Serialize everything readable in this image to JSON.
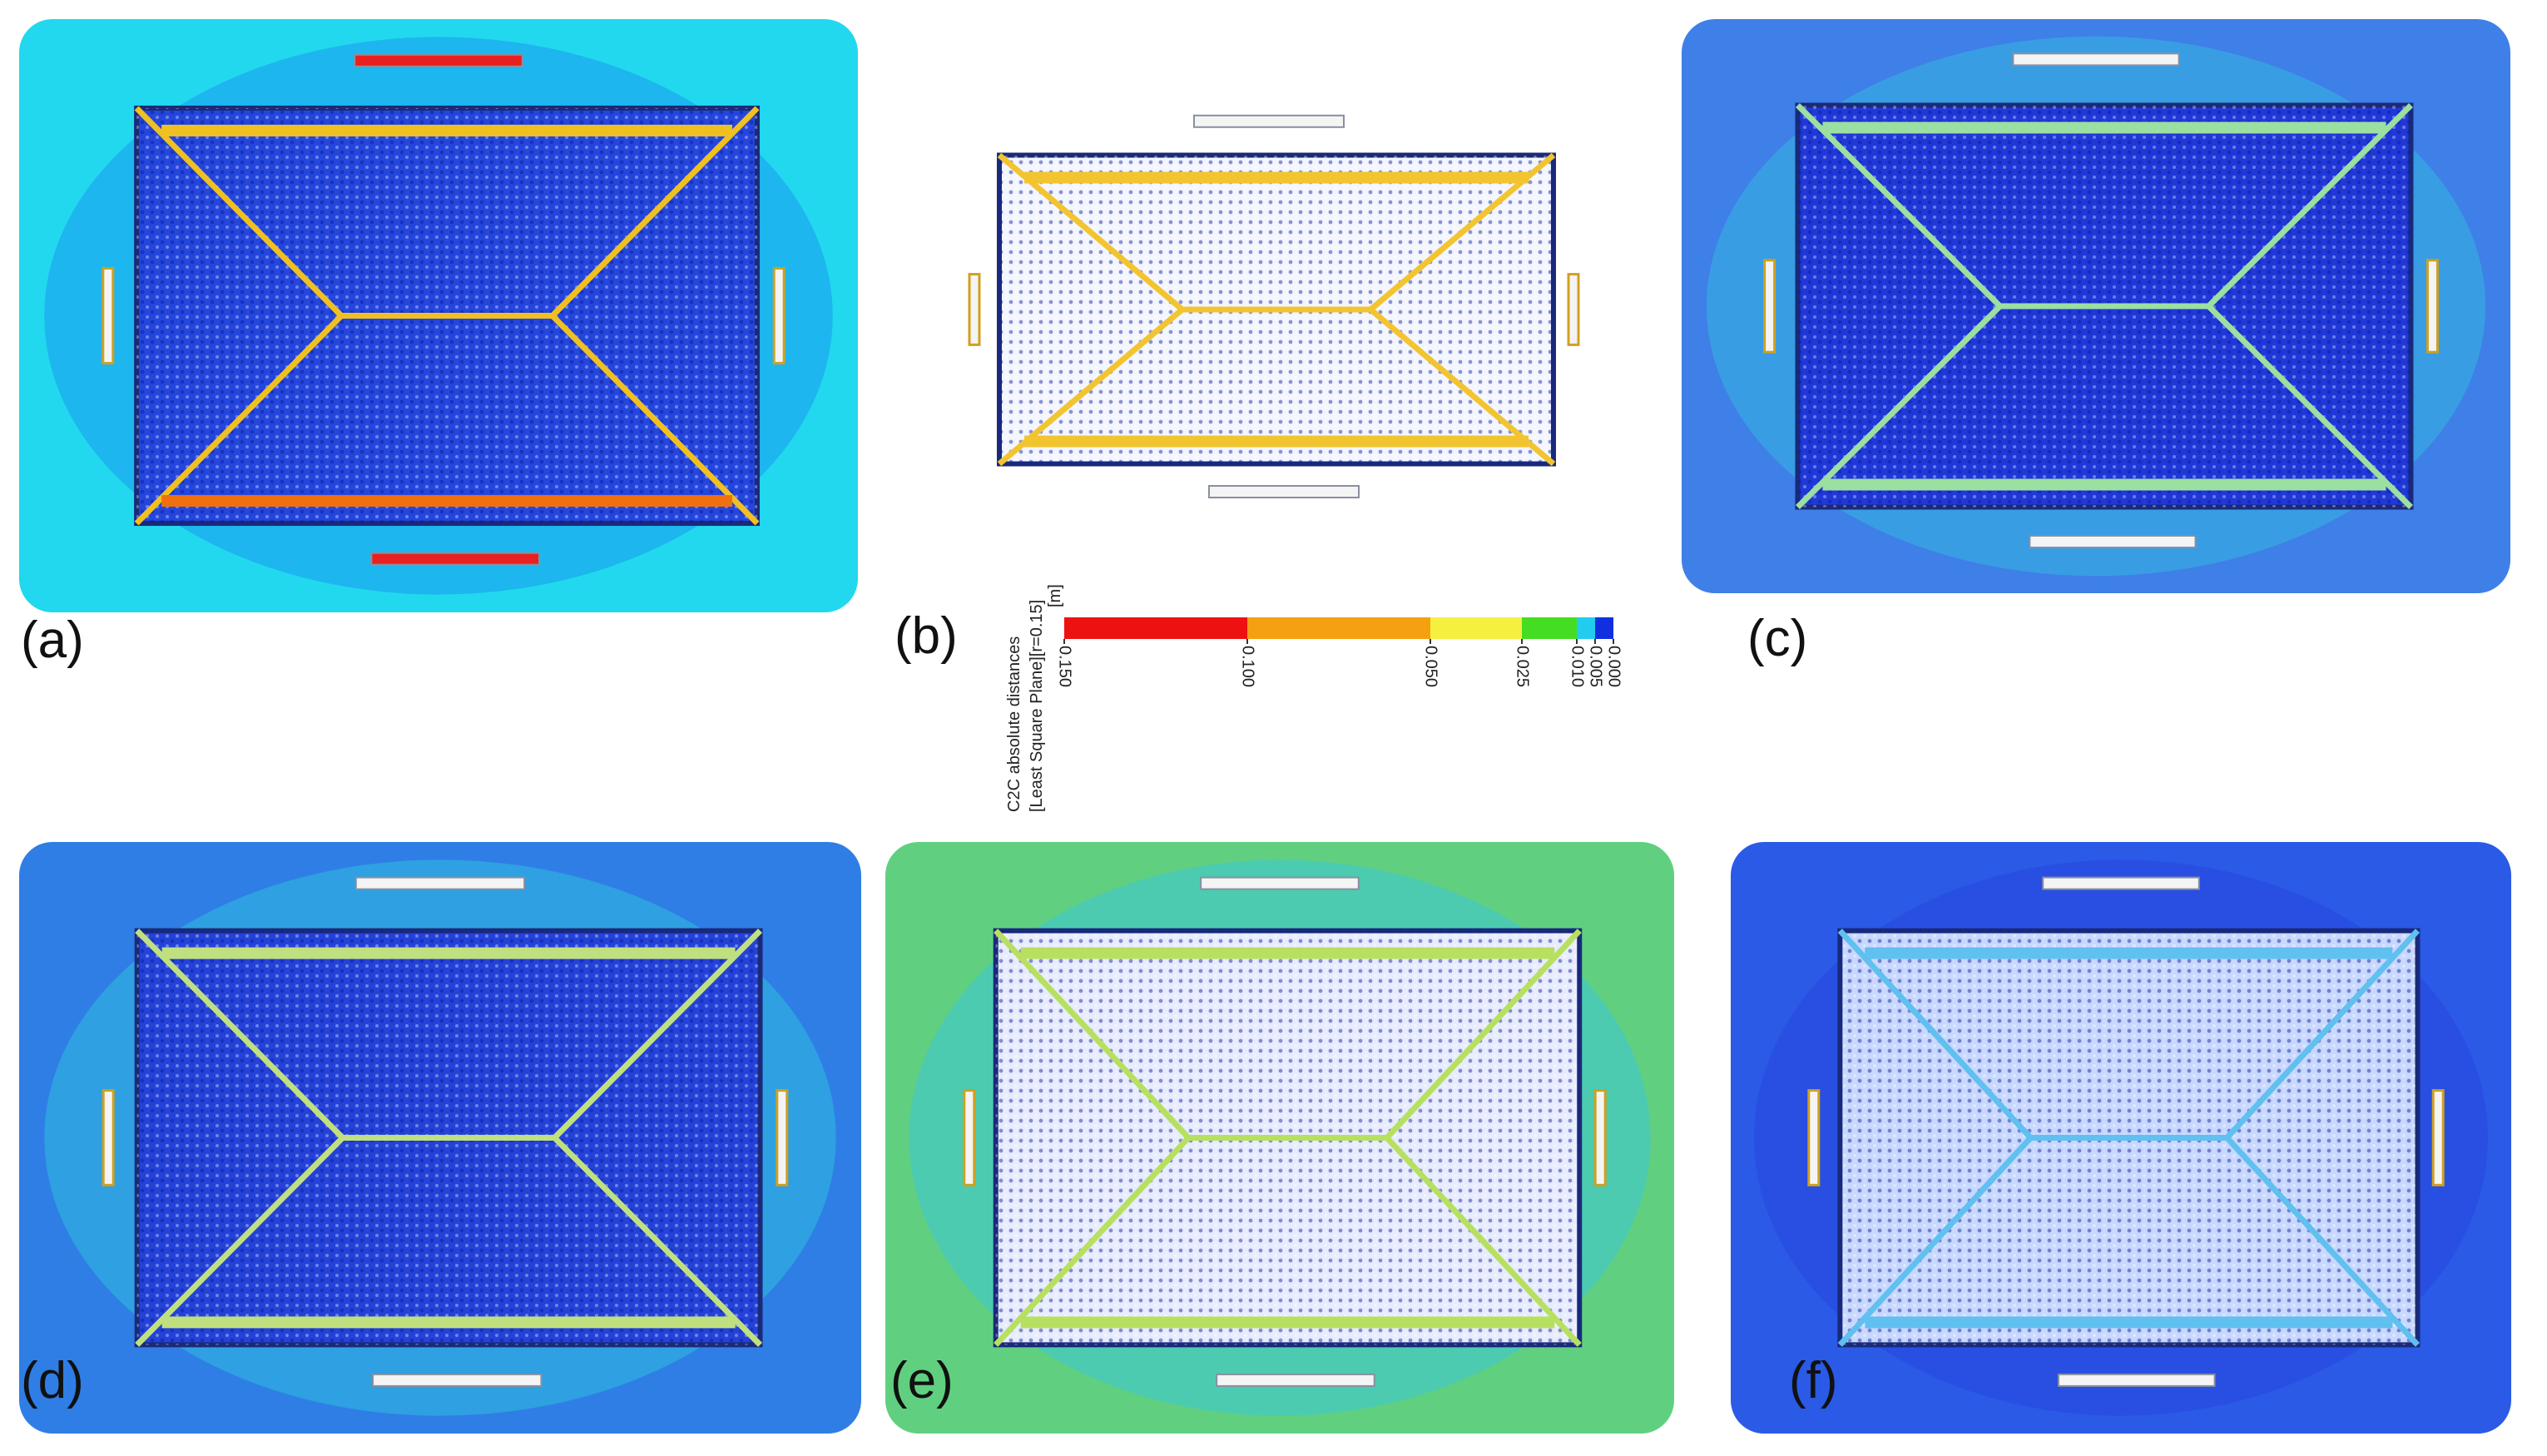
{
  "panels": [
    {
      "label": "(a)"
    },
    {
      "label": "(b)"
    },
    {
      "label": "(c)"
    },
    {
      "label": "(d)"
    },
    {
      "label": "(e)"
    },
    {
      "label": "(f)"
    }
  ],
  "colorbar": {
    "title": [
      "C2C absolute distances",
      "[Least Square Plane][r=0.15]"
    ],
    "unit": "[m]",
    "ticks": [
      {
        "value": 0.15,
        "label": "0.150"
      },
      {
        "value": 0.1,
        "label": "0.100"
      },
      {
        "value": 0.05,
        "label": "0.050"
      },
      {
        "value": 0.025,
        "label": "0.025"
      },
      {
        "value": 0.01,
        "label": "0.010"
      },
      {
        "value": 0.005,
        "label": "0.005"
      },
      {
        "value": 0,
        "label": "0.000"
      }
    ],
    "colors": [
      "#ee1111",
      "#f5a010",
      "#f5f040",
      "#44dd22",
      "#22ccee",
      "#1030e0"
    ]
  }
}
